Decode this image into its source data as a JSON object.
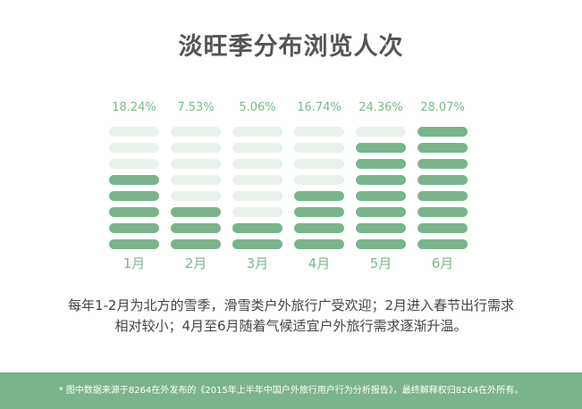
{
  "title": "淡旺季分布浏览人次",
  "chart_data": {
    "type": "bar",
    "categories": [
      "1月",
      "2月",
      "3月",
      "4月",
      "5月",
      "6月"
    ],
    "values": [
      18.24,
      7.53,
      5.06,
      16.74,
      24.36,
      28.07
    ],
    "value_labels": [
      "18.24%",
      "7.53%",
      "5.06%",
      "16.74%",
      "24.36%",
      "28.07%"
    ],
    "segments_total": 8,
    "segments_filled": [
      5,
      3,
      2,
      4,
      7,
      8
    ],
    "colors": {
      "filled": "#78b58b",
      "empty": "#e9f1eb",
      "value_label": "#7cb88d",
      "category_label": "#7cb88d"
    }
  },
  "caption": {
    "line1": "每年1-2月为北方的雪季，滑雪类户外旅行广受欢迎；2月进入春节出行需求",
    "line2": "相对较小；4月至6月随着气候适宜户外旅行需求逐渐升温。"
  },
  "footer": {
    "note": "* 图中数据来源于8264在外发布的《2015年上半年中国户外旅行用户行为分析报告》，最终解释权归8264在外所有。"
  },
  "colors": {
    "footer_bg": "#7ab48d"
  }
}
